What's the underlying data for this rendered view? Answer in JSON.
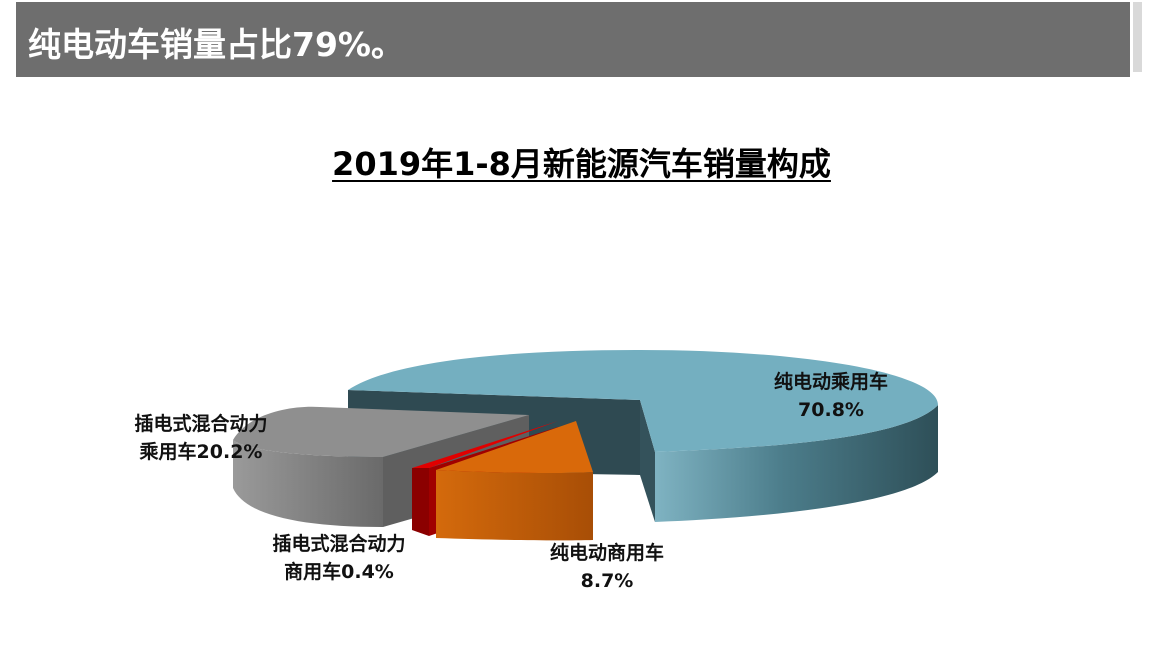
{
  "header": {
    "title": "纯电动车销量占比79%。"
  },
  "chart_data": {
    "type": "pie",
    "title": "2019年1-8月新能源汽车销量构成",
    "slices": [
      {
        "key": "bev_passenger",
        "name": "纯电动乘用车",
        "value_label": "70.8%",
        "value": 70.8,
        "color": "#74afc0"
      },
      {
        "key": "bev_commercial",
        "name": "纯电动商用车",
        "value_label": "8.7%",
        "value": 8.7,
        "color": "#d9690a"
      },
      {
        "key": "phev_commercial",
        "name": "插电式混合动力商用车",
        "value_label": "0.4%",
        "value": 0.4,
        "color": "#c00000"
      },
      {
        "key": "phev_passenger",
        "name": "插电式混合动力乘用车",
        "value_label": "20.2%",
        "value": 20.2,
        "color": "#a6a6a6"
      }
    ],
    "labels": {
      "bev_passenger": [
        "纯电动乘用车",
        "70.8%"
      ],
      "bev_commercial": [
        "纯电动商用车",
        "8.7%"
      ],
      "phev_commercial": [
        "插电式混合动力",
        "商用车0.4%"
      ],
      "phev_passenger": [
        "插电式混合动力",
        "乘用车20.2%"
      ]
    },
    "style": "3d-exploded"
  }
}
